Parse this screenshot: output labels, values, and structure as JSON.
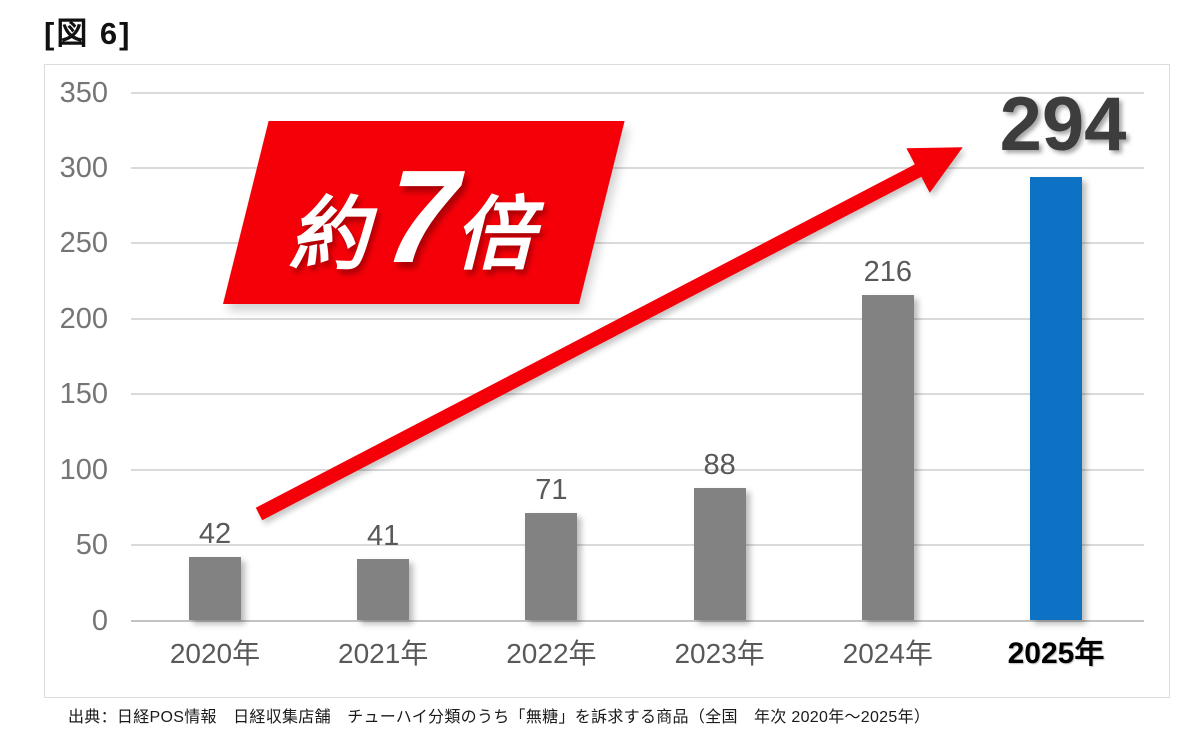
{
  "figure_label": "[図 6]",
  "source_note": "出典：日経POS情報　日経収集店舗　チューハイ分類のうち「無糖」を訴求する商品（全国　年次 2020年～2025年）",
  "chart_data": {
    "type": "bar",
    "title": "",
    "xlabel": "",
    "ylabel": "",
    "categories": [
      "2020年",
      "2021年",
      "2022年",
      "2023年",
      "2024年",
      "2025年"
    ],
    "values": [
      42,
      41,
      71,
      88,
      216,
      294
    ],
    "highlight_index": 5,
    "ylim": [
      0,
      350
    ],
    "yticks": [
      0,
      50,
      100,
      150,
      200,
      250,
      300,
      350
    ],
    "grid": true,
    "legend": "none",
    "annotation": {
      "text": "約7倍",
      "prefix": "約",
      "big": "7",
      "suffix": "倍",
      "arrow": "from 2020 bar up to 2025 value"
    },
    "colors": {
      "bar_gray": "#828282",
      "bar_highlight_blue": "#0e72c4",
      "accent_red": "#f50008",
      "value_label_gray": "#595959",
      "value_label_dark": "#3d3d3d",
      "axis_label_gray": "#757575",
      "gridline": "#dadada",
      "axis_line": "#c3c3c3"
    }
  }
}
